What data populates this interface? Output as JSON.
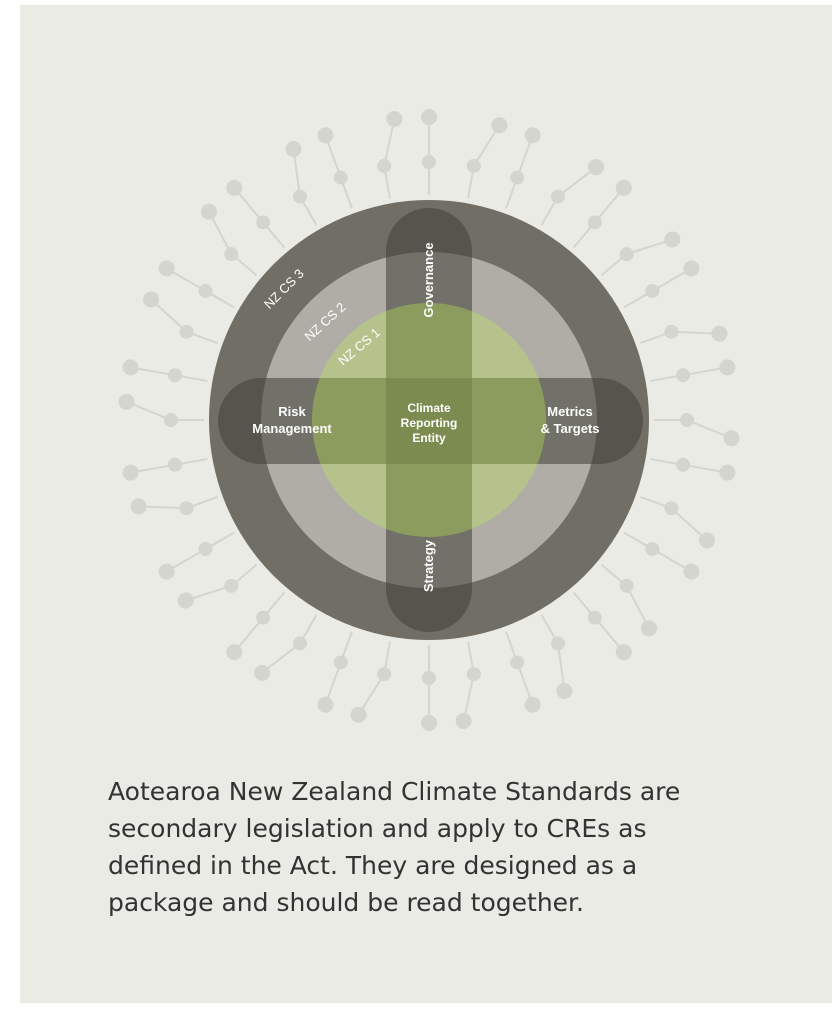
{
  "diagram": {
    "rings": [
      "NZ CS 3",
      "NZ CS 2",
      "NZ CS 1"
    ],
    "pillars": {
      "governance": "Governance",
      "strategy": "Strategy",
      "risk_management": [
        "Risk",
        "Management"
      ],
      "metrics_targets": [
        "Metrics",
        "& Targets"
      ]
    },
    "center": [
      "Climate",
      "Reporting",
      "Entity"
    ]
  },
  "caption": [
    "Aotearoa New Zealand Climate Standards are",
    "secondary legislation and apply to CREs as",
    "defined in the Act. They are designed as a",
    "package and should be read together."
  ]
}
